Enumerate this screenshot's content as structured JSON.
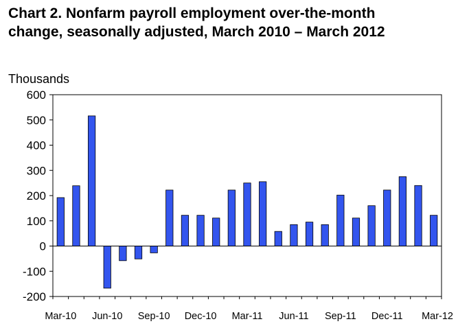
{
  "chart_data": {
    "type": "bar",
    "title_line1": "Chart 2. Nonfarm payroll employment over-the-month",
    "title_line2": "change, seasonally adjusted, March 2010 – March 2012",
    "ylabel": "Thousands",
    "ylim": [
      -200,
      600
    ],
    "yticks": [
      600,
      500,
      400,
      300,
      200,
      100,
      0,
      -100,
      -200
    ],
    "grid": false,
    "bar_color": "#3355ee",
    "months": [
      "Mar-10",
      "Apr-10",
      "May-10",
      "Jun-10",
      "Jul-10",
      "Aug-10",
      "Sep-10",
      "Oct-10",
      "Nov-10",
      "Dec-10",
      "Jan-11",
      "Feb-11",
      "Mar-11",
      "Apr-11",
      "May-11",
      "Jun-11",
      "Jul-11",
      "Aug-11",
      "Sep-11",
      "Oct-11",
      "Nov-11",
      "Dec-11",
      "Jan-12",
      "Feb-12",
      "Mar-12"
    ],
    "values": [
      192,
      239,
      516,
      -167,
      -58,
      -51,
      -27,
      222,
      122,
      122,
      111,
      222,
      250,
      255,
      58,
      85,
      95,
      85,
      202,
      111,
      160,
      222,
      275,
      240,
      122
    ],
    "xtick_labels": [
      {
        "index": 0,
        "label": "Mar-10"
      },
      {
        "index": 3,
        "label": "Jun-10"
      },
      {
        "index": 6,
        "label": "Sep-10"
      },
      {
        "index": 9,
        "label": "Dec-10"
      },
      {
        "index": 12,
        "label": "Mar-11"
      },
      {
        "index": 15,
        "label": "Jun-11"
      },
      {
        "index": 18,
        "label": "Sep-11"
      },
      {
        "index": 21,
        "label": "Dec-11"
      },
      {
        "index": 24,
        "label": "Mar-12"
      }
    ]
  }
}
